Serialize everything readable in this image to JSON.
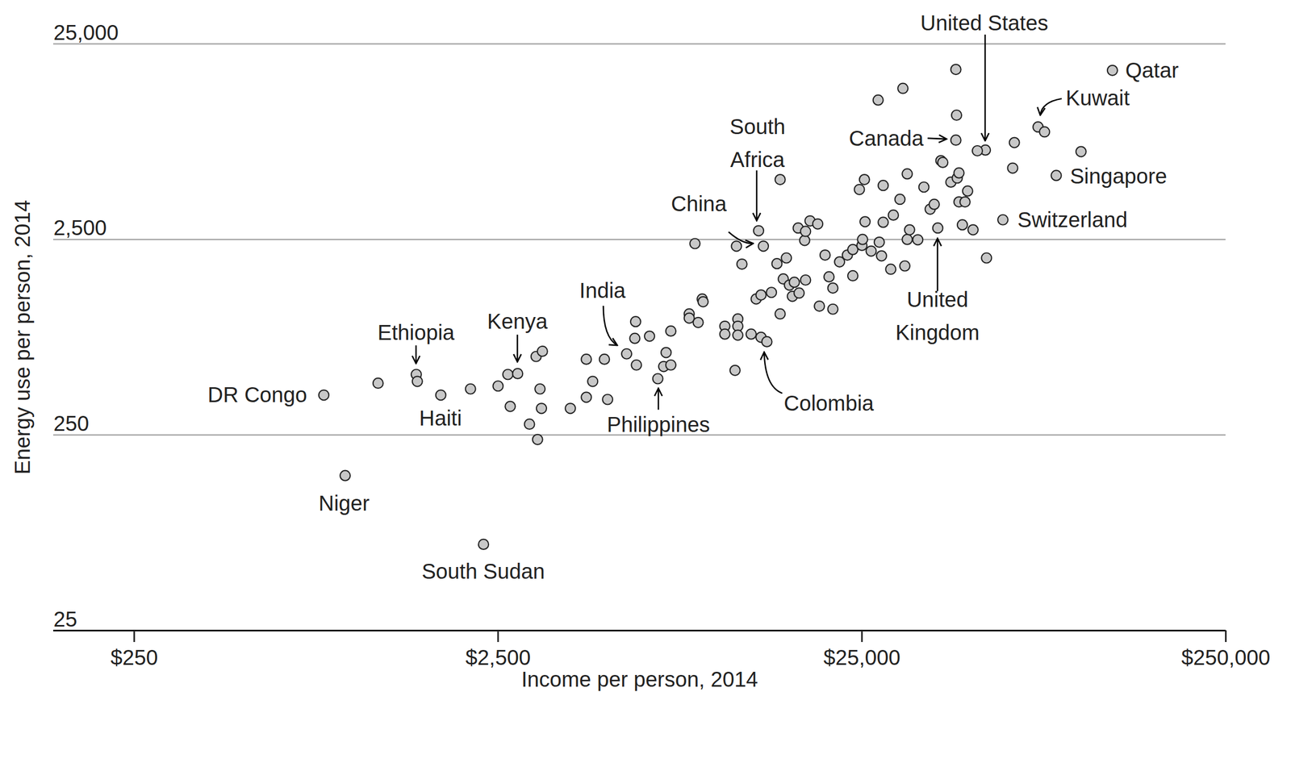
{
  "chart_data": {
    "type": "scatter",
    "xlabel": "Income per person, 2014",
    "ylabel": "Energy use per person, 2014",
    "log": true,
    "grid": true,
    "color": "#c8c8c8",
    "xlim": [
      150,
      250000
    ],
    "ylim": [
      25,
      25000
    ],
    "xticks": [
      {
        "value": 250,
        "label": "$250"
      },
      {
        "value": 2500,
        "label": "$2,500"
      },
      {
        "value": 25000,
        "label": "$25,000"
      },
      {
        "value": 250000,
        "label": "$250,000"
      }
    ],
    "yticks": [
      25,
      250,
      {
        "value": 2500,
        "label": "2,500"
      },
      {
        "value": 25000,
        "label": "25,000"
      }
    ],
    "x": [
      830,
      1170,
      1490,
      1500,
      1740,
      2100,
      950,
      2280,
      2500,
      2660,
      2830,
      2700,
      3050,
      3210,
      3180,
      3310,
      3260,
      3290,
      3950,
      4370,
      4370,
      4550,
      4900,
      5000,
      5640,
      5970,
      5940,
      6000,
      6520,
      6870,
      7130,
      7240,
      7460,
      7460,
      8380,
      8380,
      8870,
      9100,
      9150,
      8690,
      10500,
      10500,
      11400,
      11400,
      11400,
      11200,
      12400,
      13200,
      13700,
      13400,
      13000,
      11300,
      11700,
      12800,
      13200,
      14100,
      14600,
      14900,
      15500,
      15200,
      15800,
      16100,
      16300,
      16800,
      17500,
      17400,
      16700,
      17500,
      18000,
      18900,
      19100,
      19800,
      20300,
      20800,
      20800,
      21700,
      22800,
      23600,
      23600,
      25000,
      25100,
      25500,
      24600,
      25400,
      26500,
      27900,
      28300,
      28600,
      28600,
      30000,
      30500,
      31800,
      32800,
      33300,
      33800,
      33300,
      35600,
      37000,
      38500,
      39500,
      40400,
      41200,
      41700,
      43900,
      45300,
      45500,
      45300,
      45700,
      46200,
      46200,
      48000,
      48800,
      47200,
      50500,
      55000,
      54600,
      51900,
      61000,
      64900,
      65600,
      76200,
      79400,
      85500,
      100000,
      122000,
      27700,
      32400,
      14900
    ],
    "values": [
      400,
      460,
      510,
      470,
      400,
      430,
      155,
      69,
      445,
      510,
      515,
      350,
      284,
      237,
      630,
      670,
      430,
      342,
      342,
      610,
      390,
      470,
      610,
      380,
      650,
      950,
      780,
      570,
      800,
      485,
      560,
      660,
      570,
      850,
      1040,
      990,
      940,
      1240,
      1200,
      2380,
      900,
      820,
      980,
      900,
      810,
      535,
      820,
      790,
      750,
      2310,
      2770,
      2310,
      1870,
      1240,
      1300,
      1340,
      1880,
      1040,
      2010,
      1570,
      1460,
      1280,
      1510,
      1330,
      1550,
      2470,
      2860,
      2750,
      3110,
      3000,
      1140,
      2080,
      1610,
      1410,
      1100,
      1920,
      2080,
      2220,
      1630,
      2330,
      2500,
      3080,
      4500,
      5060,
      2180,
      2420,
      2060,
      3060,
      4720,
      1760,
      3330,
      4010,
      1830,
      2500,
      2800,
      5410,
      2490,
      4630,
      3570,
      3780,
      2860,
      6320,
      6190,
      4910,
      8050,
      10800,
      18500,
      5150,
      5470,
      3890,
      3890,
      4420,
      2970,
      2800,
      2010,
      7160,
      7100,
      3150,
      5790,
      7820,
      9400,
      8870,
      5310,
      7030,
      18300,
      12900,
      14800,
      5060
    ],
    "annotations": [
      {
        "text": "Qatar",
        "x": 122000,
        "y": 18300
      },
      {
        "text": "Kuwait",
        "x": 76200,
        "y": 9400
      },
      {
        "text": "Singapore",
        "x": 85500,
        "y": 5310
      },
      {
        "text": "Switzerland",
        "x": 61000,
        "y": 3150
      },
      {
        "text": "United States",
        "x": 54600,
        "y": 7160
      },
      {
        "text": "Canada",
        "x": 45300,
        "y": 8050
      },
      {
        "text": "United\nKingdom",
        "x": 40400,
        "y": 2860
      },
      {
        "text": "South\nAfrica",
        "x": 13000,
        "y": 2770
      },
      {
        "text": "China",
        "x": 13400,
        "y": 2310
      },
      {
        "text": "India",
        "x": 5640,
        "y": 650
      },
      {
        "text": "Kenya",
        "x": 2830,
        "y": 515
      },
      {
        "text": "Ethiopia",
        "x": 1490,
        "y": 510
      },
      {
        "text": "DR Congo",
        "x": 830,
        "y": 400
      },
      {
        "text": "Haiti",
        "x": 1740,
        "y": 400
      },
      {
        "text": "Niger",
        "x": 950,
        "y": 155
      },
      {
        "text": "South Sudan",
        "x": 2280,
        "y": 69
      },
      {
        "text": "Philippines",
        "x": 6870,
        "y": 485
      },
      {
        "text": "Colombia",
        "x": 13700,
        "y": 750
      }
    ]
  }
}
